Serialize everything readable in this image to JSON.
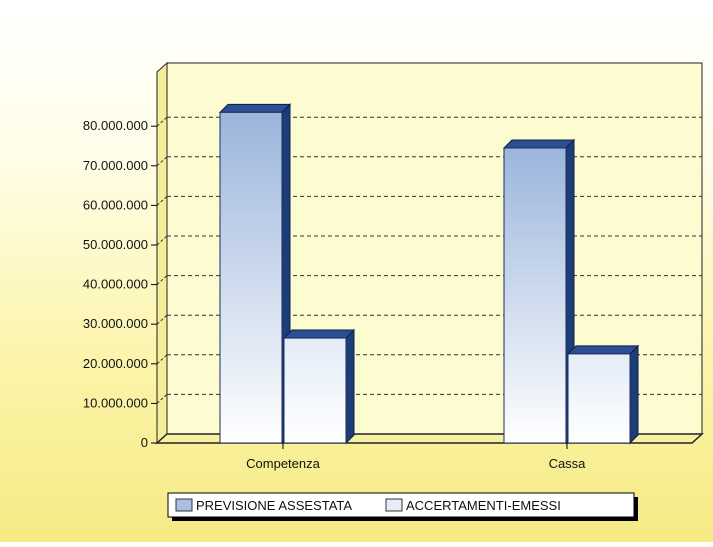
{
  "chart_data": {
    "type": "bar",
    "categories": [
      "Competenza",
      "Cassa"
    ],
    "series": [
      {
        "name": "PREVISIONE ASSESTATA",
        "values": [
          83500000,
          74500000
        ]
      },
      {
        "name": "ACCERTAMENTI-EMESSI",
        "values": [
          26500000,
          22500000
        ]
      }
    ],
    "yticks": [
      "0",
      "10.000.000",
      "20.000.000",
      "30.000.000",
      "40.000.000",
      "50.000.000",
      "60.000.000",
      "70.000.000",
      "80.000.000"
    ],
    "ylim": [
      0,
      87000000
    ],
    "grid": true,
    "legend_position": "bottom",
    "colors": {
      "series1_top": "#9bb5dc",
      "series1_bottom": "#ffffff",
      "series2_top": "#e4ecf8",
      "series2_bottom": "#ffffff",
      "bar_side": "#1d3d78",
      "bar_top": "#2a4f95",
      "plot_back": "#fdfbd0",
      "grid": "#333333"
    }
  }
}
